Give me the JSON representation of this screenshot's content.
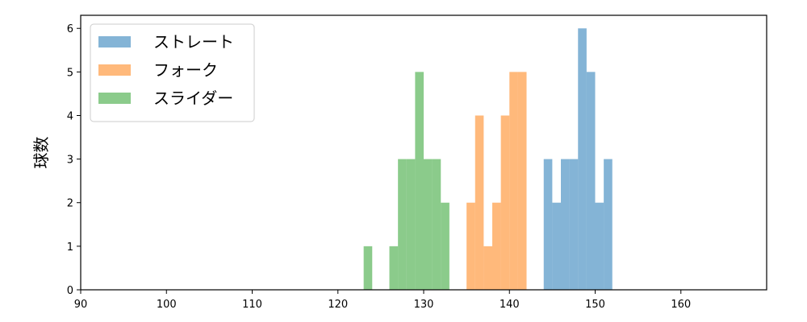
{
  "chart_data": {
    "type": "bar",
    "title": "",
    "xlabel": "",
    "ylabel": "球数",
    "xlim": [
      90,
      170
    ],
    "ylim": [
      0,
      6.3
    ],
    "xticks": [
      90,
      100,
      110,
      120,
      130,
      140,
      150,
      160
    ],
    "yticks": [
      0,
      1,
      2,
      3,
      4,
      5,
      6
    ],
    "bin_width": 1,
    "grid": false,
    "legend_position": "top-left",
    "series": [
      {
        "name": "ストレート",
        "color": "#1f77b4",
        "bins": [
          {
            "x": 144,
            "count": 3
          },
          {
            "x": 145,
            "count": 2
          },
          {
            "x": 146,
            "count": 3
          },
          {
            "x": 147,
            "count": 3
          },
          {
            "x": 148,
            "count": 6
          },
          {
            "x": 149,
            "count": 5
          },
          {
            "x": 150,
            "count": 2
          },
          {
            "x": 151,
            "count": 3
          }
        ]
      },
      {
        "name": "フォーク",
        "color": "#ff7f0e",
        "bins": [
          {
            "x": 135,
            "count": 2
          },
          {
            "x": 136,
            "count": 4
          },
          {
            "x": 137,
            "count": 1
          },
          {
            "x": 138,
            "count": 2
          },
          {
            "x": 139,
            "count": 4
          },
          {
            "x": 140,
            "count": 5
          },
          {
            "x": 141,
            "count": 5
          }
        ]
      },
      {
        "name": "スライダー",
        "color": "#2ca02c",
        "bins": [
          {
            "x": 123,
            "count": 1
          },
          {
            "x": 126,
            "count": 1
          },
          {
            "x": 127,
            "count": 3
          },
          {
            "x": 128,
            "count": 3
          },
          {
            "x": 129,
            "count": 5
          },
          {
            "x": 130,
            "count": 3
          },
          {
            "x": 131,
            "count": 3
          },
          {
            "x": 132,
            "count": 2
          }
        ]
      }
    ]
  }
}
